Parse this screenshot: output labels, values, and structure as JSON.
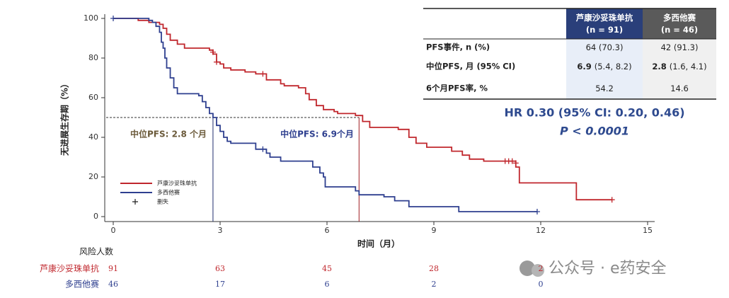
{
  "chart_data": {
    "type": "km",
    "ylabel": "无进展生存期（%）",
    "xlabel": "时间（月）",
    "xlim": [
      0,
      15
    ],
    "xticks": [
      0,
      3,
      6,
      9,
      12,
      15
    ],
    "ylim": [
      0,
      100
    ],
    "yticks": [
      0,
      20,
      40,
      60,
      80,
      100
    ],
    "reference_y": 50,
    "censor_label": "删失",
    "series": [
      {
        "name": "芦康沙妥珠单抗",
        "color": "#c0272d",
        "x": [
          0,
          0.7,
          1.0,
          1.3,
          1.4,
          1.5,
          1.6,
          1.8,
          2.0,
          2.7,
          2.8,
          2.9,
          3.0,
          3.1,
          3.3,
          3.7,
          4.0,
          4.3,
          4.7,
          4.8,
          5.2,
          5.4,
          5.5,
          5.7,
          5.9,
          6.2,
          6.3,
          6.8,
          7.0,
          7.2,
          8.0,
          8.3,
          8.5,
          8.8,
          9.5,
          9.8,
          10.0,
          10.4,
          11.3,
          11.4,
          13.0,
          14.0
        ],
        "values": [
          100,
          99,
          98,
          97,
          95,
          92,
          89,
          87,
          85,
          84,
          82,
          78,
          77,
          75,
          74,
          73,
          72,
          69,
          67,
          66,
          65,
          62,
          59,
          56,
          54,
          53,
          52,
          51,
          48,
          45,
          44,
          40,
          37,
          35,
          33,
          31,
          29,
          28,
          25,
          17,
          8.5,
          8.5
        ],
        "censored_x": [
          2.8,
          2.9,
          4.2,
          11.0,
          11.1,
          11.2,
          11.3,
          14.0
        ],
        "censored_values": [
          83,
          78,
          72,
          28,
          28,
          28,
          27,
          8.5
        ],
        "median": 6.9,
        "median_label": "中位PFS: 6.9个月",
        "at_risk": [
          "91",
          "63",
          "45",
          "28",
          "2"
        ]
      },
      {
        "name": "多西他赛",
        "color": "#2e3f8f",
        "x": [
          0,
          1.0,
          1.1,
          1.2,
          1.3,
          1.35,
          1.4,
          1.45,
          1.5,
          1.6,
          1.7,
          1.8,
          2.4,
          2.5,
          2.6,
          2.7,
          2.8,
          2.9,
          3.0,
          3.1,
          3.2,
          3.3,
          4.0,
          4.3,
          4.4,
          4.7,
          5.6,
          5.8,
          5.9,
          5.95,
          6.8,
          6.9,
          7.6,
          7.9,
          8.3,
          9.7,
          11.9
        ],
        "values": [
          100,
          99,
          98,
          96,
          93,
          88,
          85,
          80,
          75,
          70,
          65,
          62,
          61,
          58,
          55,
          52,
          50,
          46,
          43,
          40,
          38,
          37,
          34,
          32,
          30,
          28,
          25,
          22,
          20,
          15,
          13,
          11,
          10,
          8,
          5,
          2.5,
          2.5
        ],
        "censored_x": [
          0,
          4.2,
          11.9
        ],
        "censored_values": [
          100,
          34,
          2.5
        ],
        "median": 2.8,
        "median_label": "中位PFS: 2.8 个月",
        "at_risk": [
          "46",
          "17",
          "6",
          "2",
          "0"
        ]
      }
    ],
    "risk_title": "风险人数",
    "risk_times": [
      0,
      3,
      6,
      9,
      12
    ],
    "table": {
      "header": [
        "芦康沙妥珠单抗\n(n = 91)",
        "多西他赛\n(n = 46)"
      ],
      "rows": [
        {
          "label": "PFS事件, n (%)",
          "values": [
            {
              "bold": "",
              "text": "64 (70.3)"
            },
            {
              "bold": "",
              "text": "42 (91.3)"
            }
          ]
        },
        {
          "label": "中位PFS, 月 (95% CI)",
          "values": [
            {
              "bold": "6.9",
              "text": "(5.4, 8.2)"
            },
            {
              "bold": "2.8",
              "text": "(1.6, 4.1)"
            }
          ]
        },
        {
          "label": "6个月PFS率, %",
          "values": [
            {
              "bold": "",
              "text": "54.2"
            },
            {
              "bold": "",
              "text": "14.6"
            }
          ]
        }
      ]
    },
    "hr_text": "HR 0.30 (95% CI: 0.20, 0.46)",
    "p_text": "P < 0.0001",
    "watermark": "公众号 · e药安全"
  }
}
